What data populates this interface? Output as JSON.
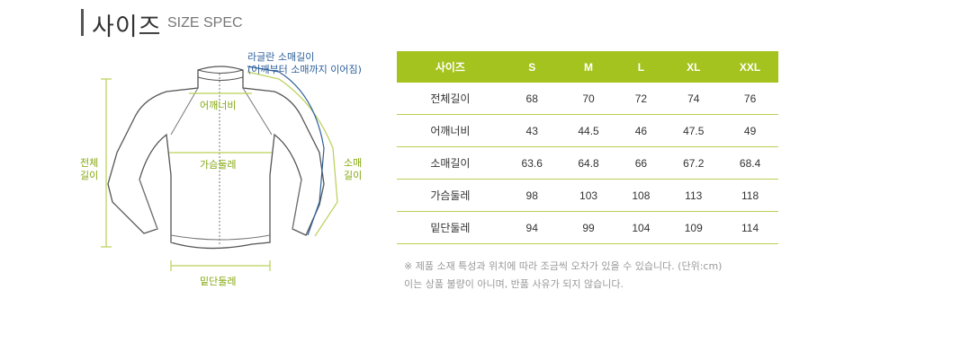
{
  "title": {
    "ko": "사이즈",
    "en": "SIZE SPEC"
  },
  "diagram": {
    "raglan_label_1": "라글란 소매길이",
    "raglan_label_2": "(어깨부터 소매까지 이어짐)",
    "shoulder": "어깨너비",
    "chest": "가슴둘레",
    "length_1": "전체",
    "length_2": "길이",
    "sleeve_1": "소매",
    "sleeve_2": "길이",
    "hem": "밑단둘레"
  },
  "colors": {
    "accent": "#a4c31e",
    "line_green": "#b9d055",
    "line_blue": "#2d5f9a"
  },
  "table": {
    "headers": [
      "사이즈",
      "S",
      "M",
      "L",
      "XL",
      "XXL"
    ],
    "rows": [
      {
        "name": "전체길이",
        "values": [
          "68",
          "70",
          "72",
          "74",
          "76"
        ]
      },
      {
        "name": "어깨너비",
        "values": [
          "43",
          "44.5",
          "46",
          "47.5",
          "49"
        ]
      },
      {
        "name": "소매길이",
        "values": [
          "63.6",
          "64.8",
          "66",
          "67.2",
          "68.4"
        ]
      },
      {
        "name": "가슴둘레",
        "values": [
          "98",
          "103",
          "108",
          "113",
          "118"
        ]
      },
      {
        "name": "밑단둘레",
        "values": [
          "94",
          "99",
          "104",
          "109",
          "114"
        ]
      }
    ]
  },
  "notes": {
    "line1": "※ 제품 소재 특성과 위치에 따라 조금씩 오차가 있을 수 있습니다. (단위:cm)",
    "line2": "이는 상품 불량이 아니며, 반품 사유가 되지 않습니다."
  }
}
